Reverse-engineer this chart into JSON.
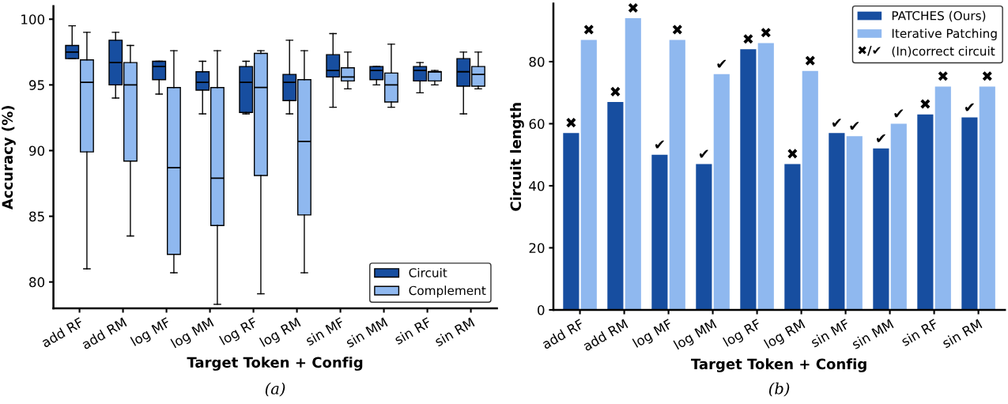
{
  "chart_data": [
    {
      "type": "box",
      "xlabel": "Target Token + Config",
      "ylabel": "Accuracy (%)",
      "categories": [
        "add RF",
        "add RM",
        "log MF",
        "log MM",
        "log RF",
        "log RM",
        "sin MF",
        "sin MM",
        "sin RF",
        "sin RM"
      ],
      "ylim": [
        78,
        101
      ],
      "yticks": [
        80,
        85,
        90,
        95,
        100
      ],
      "grid": false,
      "legend": "bottom right",
      "annotations": [
        "(a)"
      ],
      "series": [
        {
          "name": "Circuit",
          "color": "#174ea0",
          "boxes": [
            {
              "low": 97.0,
              "q1": 97.0,
              "median": 97.5,
              "q3": 98.0,
              "high": 99.5
            },
            {
              "low": 94.0,
              "q1": 95.0,
              "median": 96.7,
              "q3": 98.4,
              "high": 99.0
            },
            {
              "low": 94.3,
              "q1": 95.4,
              "median": 96.4,
              "q3": 96.8,
              "high": 96.8
            },
            {
              "low": 92.8,
              "q1": 94.6,
              "median": 95.2,
              "q3": 96.0,
              "high": 96.8
            },
            {
              "low": 92.8,
              "q1": 92.9,
              "median": 95.2,
              "q3": 96.4,
              "high": 96.8
            },
            {
              "low": 92.8,
              "q1": 93.8,
              "median": 95.2,
              "q3": 95.8,
              "high": 98.4
            },
            {
              "low": 93.3,
              "q1": 95.6,
              "median": 96.1,
              "q3": 97.3,
              "high": 98.9
            },
            {
              "low": 95.0,
              "q1": 95.4,
              "median": 96.1,
              "q3": 96.4,
              "high": 96.4
            },
            {
              "low": 94.4,
              "q1": 95.3,
              "median": 96.1,
              "q3": 96.4,
              "high": 96.7
            },
            {
              "low": 92.8,
              "q1": 94.9,
              "median": 96.0,
              "q3": 97.0,
              "high": 97.5
            }
          ]
        },
        {
          "name": "Complement",
          "color": "#8fb8ef",
          "boxes": [
            {
              "low": 81.0,
              "q1": 89.9,
              "median": 95.2,
              "q3": 96.9,
              "high": 99.0
            },
            {
              "low": 83.5,
              "q1": 89.2,
              "median": 95.0,
              "q3": 96.7,
              "high": 98.0
            },
            {
              "low": 80.7,
              "q1": 82.1,
              "median": 88.7,
              "q3": 94.8,
              "high": 97.6
            },
            {
              "low": 78.3,
              "q1": 84.3,
              "median": 87.9,
              "q3": 94.8,
              "high": 97.6
            },
            {
              "low": 79.1,
              "q1": 88.1,
              "median": 94.8,
              "q3": 97.4,
              "high": 97.6
            },
            {
              "low": 80.7,
              "q1": 85.1,
              "median": 90.7,
              "q3": 95.4,
              "high": 97.6
            },
            {
              "low": 94.7,
              "q1": 95.3,
              "median": 95.6,
              "q3": 96.3,
              "high": 97.5
            },
            {
              "low": 93.3,
              "q1": 93.7,
              "median": 95.0,
              "q3": 95.9,
              "high": 98.1
            },
            {
              "low": 95.0,
              "q1": 95.3,
              "median": 96.0,
              "q3": 96.0,
              "high": 96.1
            },
            {
              "low": 94.7,
              "q1": 94.9,
              "median": 95.8,
              "q3": 96.4,
              "high": 97.5
            }
          ]
        }
      ]
    },
    {
      "type": "bar",
      "xlabel": "Target Token + Config",
      "ylabel": "Circuit length",
      "categories": [
        "add RF",
        "add RM",
        "log MF",
        "log MM",
        "log RF",
        "log RM",
        "sin MF",
        "sin MM",
        "sin RF",
        "sin RM"
      ],
      "ylim": [
        0,
        98.7
      ],
      "yticks": [
        0,
        20,
        40,
        60,
        80
      ],
      "grid": false,
      "legend": "top right",
      "annotations": [
        "✖/✔",
        "(In)correct circuit",
        "(b)"
      ],
      "series": [
        {
          "name": "PATCHES (Ours)",
          "color": "#174ea0",
          "values": [
            57,
            67,
            50,
            47,
            84,
            47,
            57,
            52,
            63,
            62
          ],
          "value_labels": [
            "✖",
            "✖",
            "✔",
            "✔",
            "✖",
            "✖",
            "✔",
            "✔",
            "✖",
            "✔"
          ]
        },
        {
          "name": "Iterative Patching",
          "color": "#8fb8ef",
          "values": [
            87,
            94,
            87,
            76,
            86,
            77,
            56,
            60,
            72,
            72
          ],
          "value_labels": [
            "✖",
            "✖",
            "✖",
            "✔",
            "✖",
            "✖",
            "✔",
            "✔",
            "✖",
            "✖"
          ]
        }
      ]
    }
  ]
}
